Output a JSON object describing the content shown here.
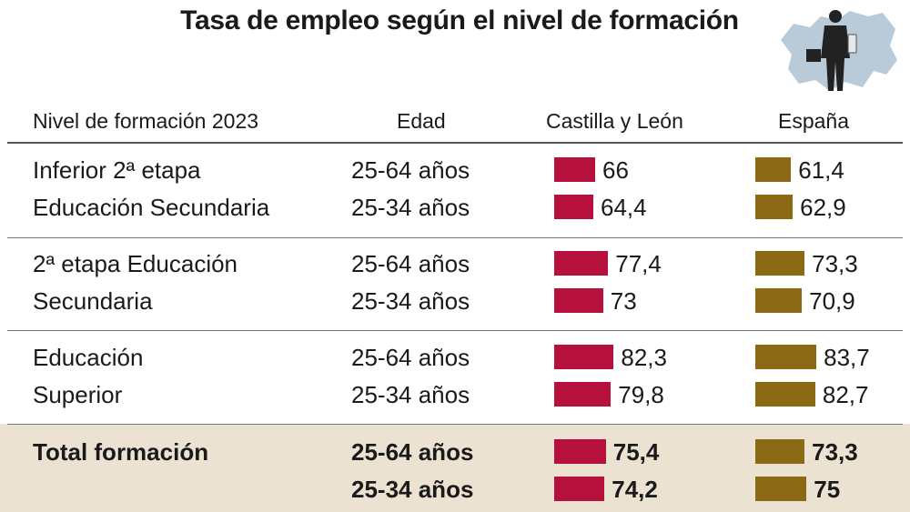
{
  "title": "Tasa de empleo según el nivel de formación",
  "headers": {
    "level": "Nivel de formación 2023",
    "age": "Edad",
    "cyl": "Castilla y León",
    "esp": "España"
  },
  "colors": {
    "cyl": "#b6113c",
    "esp": "#8c6914",
    "total_bg": "#ece2d2"
  },
  "illustration": "man-with-briefcase-over-map-icon",
  "chart_data": {
    "type": "bar",
    "series": [
      {
        "name": "Castilla y León",
        "values": [
          66,
          64.4,
          77.4,
          73,
          82.3,
          79.8,
          75.4,
          74.2
        ]
      },
      {
        "name": "España",
        "values": [
          61.4,
          62.9,
          73.3,
          70.9,
          83.7,
          82.7,
          73.3,
          75
        ]
      }
    ],
    "rows": [
      {
        "level": "Inferior 2ª etapa",
        "age": "25-64 años",
        "cyl": 66,
        "cyl_label": "66",
        "esp": 61.4,
        "esp_label": "61,4",
        "total": false
      },
      {
        "level": "Educación Secundaria",
        "age": "25-34 años",
        "cyl": 64.4,
        "cyl_label": "64,4",
        "esp": 62.9,
        "esp_label": "62,9",
        "total": false
      },
      {
        "level": "2ª etapa Educación",
        "age": "25-64 años",
        "cyl": 77.4,
        "cyl_label": "77,4",
        "esp": 73.3,
        "esp_label": "73,3",
        "total": false
      },
      {
        "level": "Secundaria",
        "age": "25-34 años",
        "cyl": 73,
        "cyl_label": "73",
        "esp": 70.9,
        "esp_label": "70,9",
        "total": false
      },
      {
        "level": "Educación",
        "age": "25-64 años",
        "cyl": 82.3,
        "cyl_label": "82,3",
        "esp": 83.7,
        "esp_label": "83,7",
        "total": false
      },
      {
        "level": "Superior",
        "age": "25-34 años",
        "cyl": 79.8,
        "cyl_label": "79,8",
        "esp": 82.7,
        "esp_label": "82,7",
        "total": false
      },
      {
        "level": "Total formación",
        "age": "25-64 años",
        "cyl": 75.4,
        "cyl_label": "75,4",
        "esp": 73.3,
        "esp_label": "73,3",
        "total": true
      },
      {
        "level": "",
        "age": "25-34 años",
        "cyl": 74.2,
        "cyl_label": "74,2",
        "esp": 75,
        "esp_label": "75",
        "total": true
      }
    ]
  }
}
